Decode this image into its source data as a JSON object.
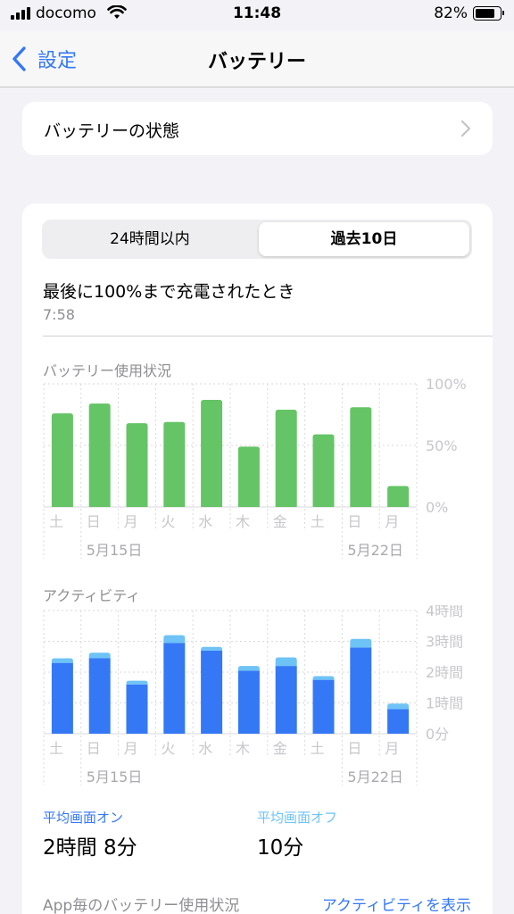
{
  "status_bar": {
    "carrier": "docomo",
    "time": "11:48",
    "battery_percent": "82%",
    "battery_level": 0.82
  },
  "nav": {
    "back_label": "設定",
    "title": "バッテリー"
  },
  "battery_health": {
    "label": "バッテリーの状態"
  },
  "segmented": {
    "options": [
      "24時間以内",
      "過去10日"
    ],
    "selected": 1
  },
  "last_charged": {
    "label": "最後に100%まで充電されたとき",
    "time": "7:58"
  },
  "charts": {
    "usage_title": "バッテリー使用状況",
    "activity_title": "アクティビティ"
  },
  "chart_data": [
    {
      "type": "bar",
      "title": "バッテリー使用状況",
      "categories": [
        "土",
        "日",
        "月",
        "火",
        "水",
        "木",
        "金",
        "土",
        "日",
        "月"
      ],
      "date_labels": [
        {
          "index": 1,
          "label": "5月15日"
        },
        {
          "index": 8,
          "label": "5月22日"
        }
      ],
      "values": [
        76,
        84,
        68,
        69,
        87,
        49,
        79,
        59,
        81,
        17
      ],
      "ylim": [
        0,
        100
      ],
      "ytick_labels": [
        "100%",
        "50%",
        "0%"
      ],
      "ytick_values": [
        100,
        50,
        0
      ],
      "color": "#65c466",
      "grid": true
    },
    {
      "type": "bar",
      "title": "アクティビティ",
      "categories": [
        "土",
        "日",
        "月",
        "火",
        "水",
        "木",
        "金",
        "土",
        "日",
        "月"
      ],
      "date_labels": [
        {
          "index": 1,
          "label": "5月15日"
        },
        {
          "index": 8,
          "label": "5月22日"
        }
      ],
      "series": [
        {
          "name": "画面オン",
          "values": [
            2.3,
            2.45,
            1.6,
            2.95,
            2.7,
            2.05,
            2.2,
            1.75,
            2.8,
            0.8
          ],
          "color": "#3478f6"
        },
        {
          "name": "画面オフ",
          "values": [
            0.15,
            0.18,
            0.12,
            0.25,
            0.12,
            0.15,
            0.28,
            0.12,
            0.28,
            0.18
          ],
          "color": "#6ec3f6"
        }
      ],
      "stacked": true,
      "ylim": [
        0,
        4
      ],
      "ytick_labels": [
        "4時間",
        "3時間",
        "2時間",
        "1時間",
        "0分"
      ],
      "ytick_values": [
        4,
        3,
        2,
        1,
        0
      ],
      "grid": true
    }
  ],
  "averages": {
    "screen_on_label": "平均画面オン",
    "screen_on_value": "2時間 8分",
    "screen_off_label": "平均画面オフ",
    "screen_off_value": "10分",
    "screen_on_color": "#3478f6",
    "screen_off_color": "#6ec3f6"
  },
  "app_usage": {
    "label": "App毎のバッテリー使用状況",
    "show_activity": "アクティビティを表示"
  }
}
